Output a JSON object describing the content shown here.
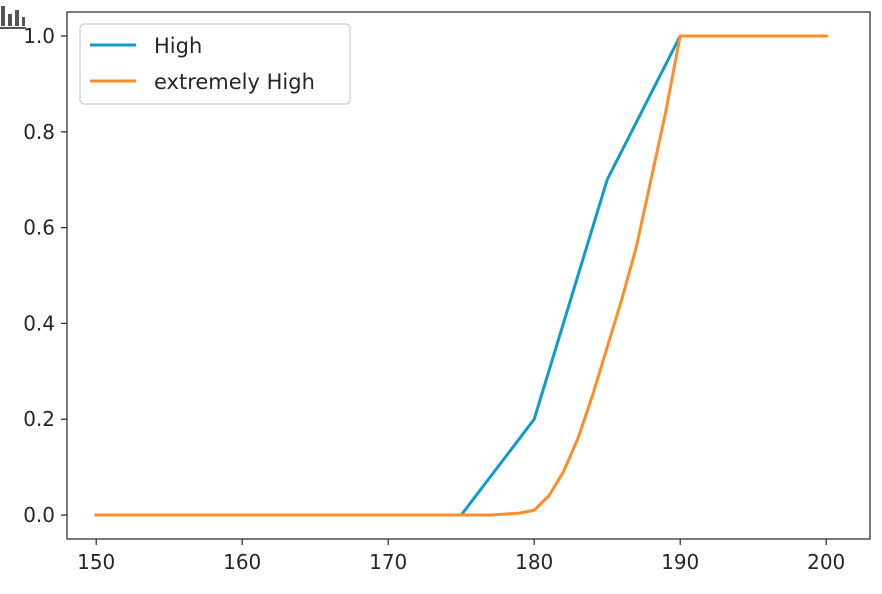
{
  "chart_data": {
    "type": "line",
    "title": "",
    "xlabel": "",
    "ylabel": "",
    "xlim": [
      148,
      203
    ],
    "ylim": [
      -0.05,
      1.05
    ],
    "x_ticks": [
      150,
      160,
      170,
      180,
      190,
      200
    ],
    "y_ticks": [
      0.0,
      0.2,
      0.4,
      0.6,
      0.8,
      1.0
    ],
    "x_tick_labels": [
      "150",
      "160",
      "170",
      "180",
      "190",
      "200"
    ],
    "y_tick_labels": [
      "0.0",
      "0.2",
      "0.4",
      "0.6",
      "0.8",
      "1.0"
    ],
    "grid": false,
    "legend_position": "upper-left",
    "series": [
      {
        "name": "High",
        "color": "#0f9ccc",
        "x": [
          150,
          175,
          180,
          185,
          190,
          200
        ],
        "y": [
          0.0,
          0.0,
          0.2,
          0.7,
          1.0,
          1.0
        ]
      },
      {
        "name": "extremely High",
        "color": "#ff8c26",
        "x": [
          150,
          175,
          177,
          178,
          179,
          180,
          181,
          182,
          183,
          184,
          185,
          186,
          187,
          188,
          189,
          190,
          195,
          200
        ],
        "y": [
          0.0,
          0.0,
          0.0,
          0.002,
          0.004,
          0.01,
          0.04,
          0.09,
          0.16,
          0.25,
          0.35,
          0.45,
          0.56,
          0.7,
          0.84,
          1.0,
          1.0,
          1.0
        ]
      }
    ]
  }
}
